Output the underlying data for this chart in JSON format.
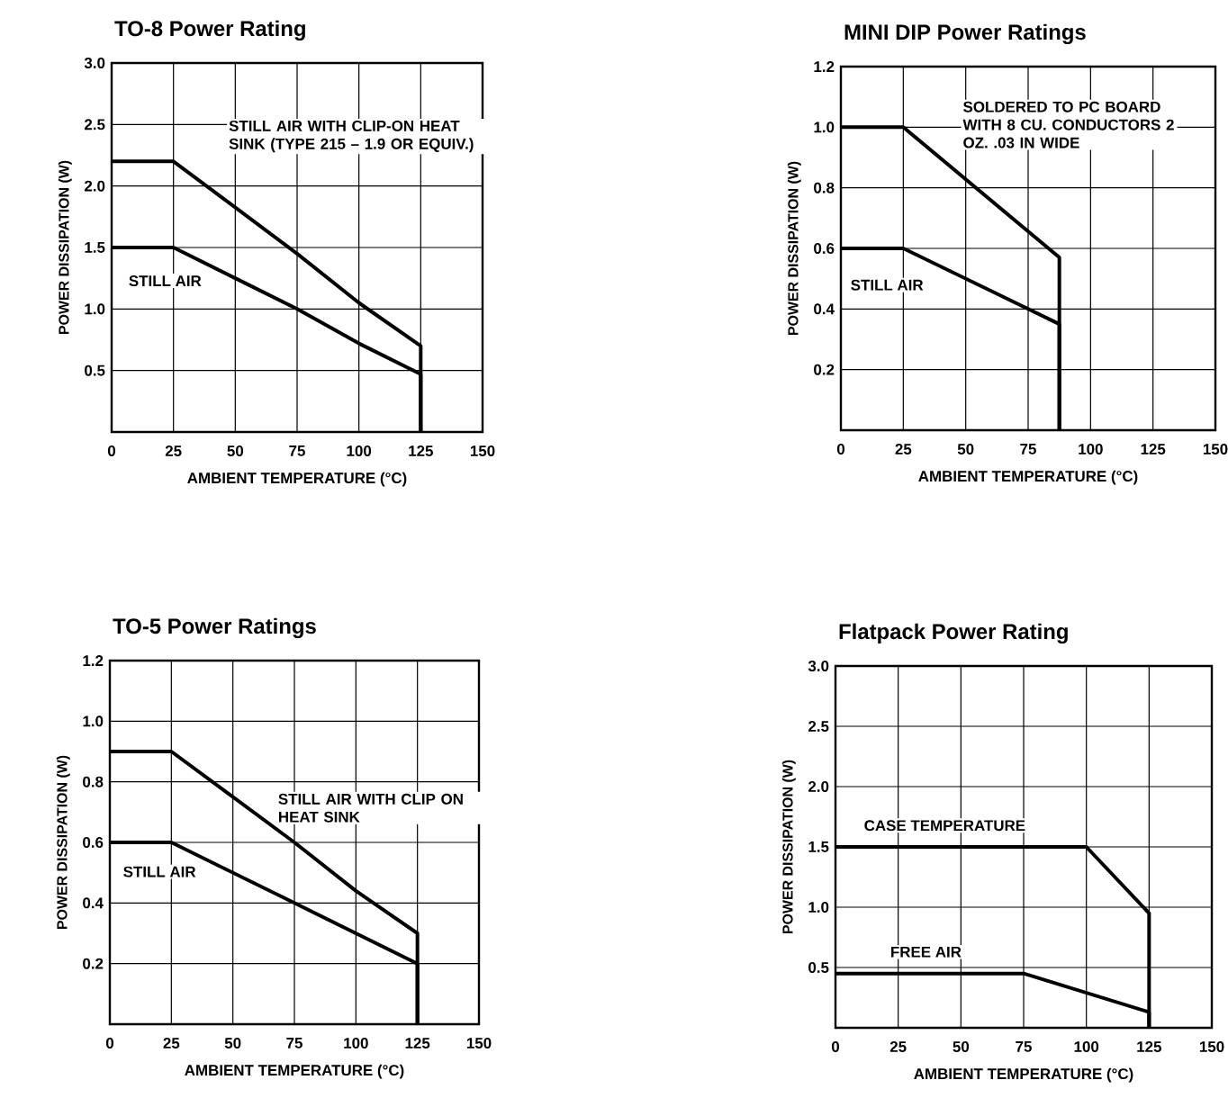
{
  "chart_data": [
    {
      "type": "line",
      "title": "TO-8 Power Rating",
      "xlabel": "AMBIENT TEMPERATURE (°C)",
      "ylabel": "POWER DISSIPATION (W)",
      "xlim": [
        0,
        150
      ],
      "ylim": [
        0,
        3
      ],
      "xticks": [
        0,
        25,
        50,
        75,
        100,
        125,
        150
      ],
      "yticks": [
        0.5,
        {
          "value": 1,
          "label": "1.0"
        },
        1.5,
        {
          "value": 2,
          "label": "2.0"
        },
        2.5,
        {
          "value": 3,
          "label": "3.0"
        }
      ],
      "grid": true,
      "series": [
        {
          "name": "STILL AIR WITH CLIP-ON HEAT SINK (TYPE 215 – 1.9 OR EQUIV.)",
          "color": "#000000",
          "x": [
            0,
            25,
            75,
            100,
            125,
            125
          ],
          "values": [
            2.2,
            2.2,
            1.45,
            1.05,
            0.7,
            0
          ]
        },
        {
          "name": "STILL AIR",
          "color": "#000000",
          "x": [
            0,
            25,
            50,
            75,
            100,
            125,
            125
          ],
          "values": [
            1.5,
            1.5,
            1.25,
            1.0,
            0.72,
            0.47,
            0
          ]
        }
      ]
    },
    {
      "type": "line",
      "title": "MINI DIP Power Ratings",
      "xlabel": "AMBIENT TEMPERATURE (°C)",
      "ylabel": "POWER DISSIPATION (W)",
      "xlim": [
        0,
        150
      ],
      "ylim": [
        0,
        1.2
      ],
      "xticks": [
        0,
        25,
        50,
        75,
        100,
        125,
        150
      ],
      "yticks": [
        0.2,
        0.4,
        0.6,
        0.8,
        {
          "value": 1,
          "label": "1.0"
        },
        1.2
      ],
      "grid": true,
      "series": [
        {
          "name": "SOLDERED TO PC BOARD WITH 8 CU. CONDUCTORS 2 OZ. .03 IN WIDE",
          "color": "#000000",
          "x": [
            0,
            25,
            87.5,
            87.5
          ],
          "values": [
            1.0,
            1.0,
            0.57,
            0
          ]
        },
        {
          "name": "STILL AIR",
          "color": "#000000",
          "x": [
            0,
            25,
            75,
            87.5,
            87.5
          ],
          "values": [
            0.6,
            0.6,
            0.4,
            0.35,
            0
          ]
        }
      ]
    },
    {
      "type": "line",
      "title": "TO-5 Power Ratings",
      "xlabel": "AMBIENT TEMPERATURE (°C)",
      "ylabel": "POWER DISSIPATION (W)",
      "xlim": [
        0,
        150
      ],
      "ylim": [
        0,
        1.2
      ],
      "xticks": [
        0,
        25,
        50,
        75,
        100,
        125,
        150
      ],
      "yticks": [
        0.2,
        0.4,
        0.6,
        0.8,
        {
          "value": 1,
          "label": "1.0"
        },
        1.2
      ],
      "grid": true,
      "series": [
        {
          "name": "STILL AIR WITH CLIP ON HEAT SINK",
          "color": "#000000",
          "x": [
            0,
            25,
            75,
            100,
            125,
            125
          ],
          "values": [
            0.9,
            0.9,
            0.6,
            0.44,
            0.3,
            0
          ]
        },
        {
          "name": "STILL AIR",
          "color": "#000000",
          "x": [
            0,
            25,
            75,
            100,
            125,
            125
          ],
          "values": [
            0.6,
            0.6,
            0.4,
            0.3,
            0.2,
            0
          ]
        }
      ]
    },
    {
      "type": "line",
      "title": "Flatpack Power Rating",
      "xlabel": "AMBIENT TEMPERATURE (°C)",
      "ylabel": "POWER DISSIPATION (W)",
      "xlim": [
        0,
        150
      ],
      "ylim": [
        0,
        3
      ],
      "xticks": [
        0,
        25,
        50,
        75,
        100,
        125,
        150
      ],
      "yticks": [
        0.5,
        {
          "value": 1,
          "label": "1.0"
        },
        1.5,
        {
          "value": 2,
          "label": "2.0"
        },
        2.5,
        {
          "value": 3,
          "label": "3.0"
        }
      ],
      "grid": true,
      "series": [
        {
          "name": "CASE TEMPERATURE",
          "color": "#000000",
          "x": [
            0,
            100,
            125,
            125
          ],
          "values": [
            1.5,
            1.5,
            0.95,
            0
          ]
        },
        {
          "name": "FREE AIR",
          "color": "#000000",
          "x": [
            0,
            75,
            125,
            125
          ],
          "values": [
            0.45,
            0.45,
            0.13,
            0
          ]
        }
      ]
    }
  ]
}
